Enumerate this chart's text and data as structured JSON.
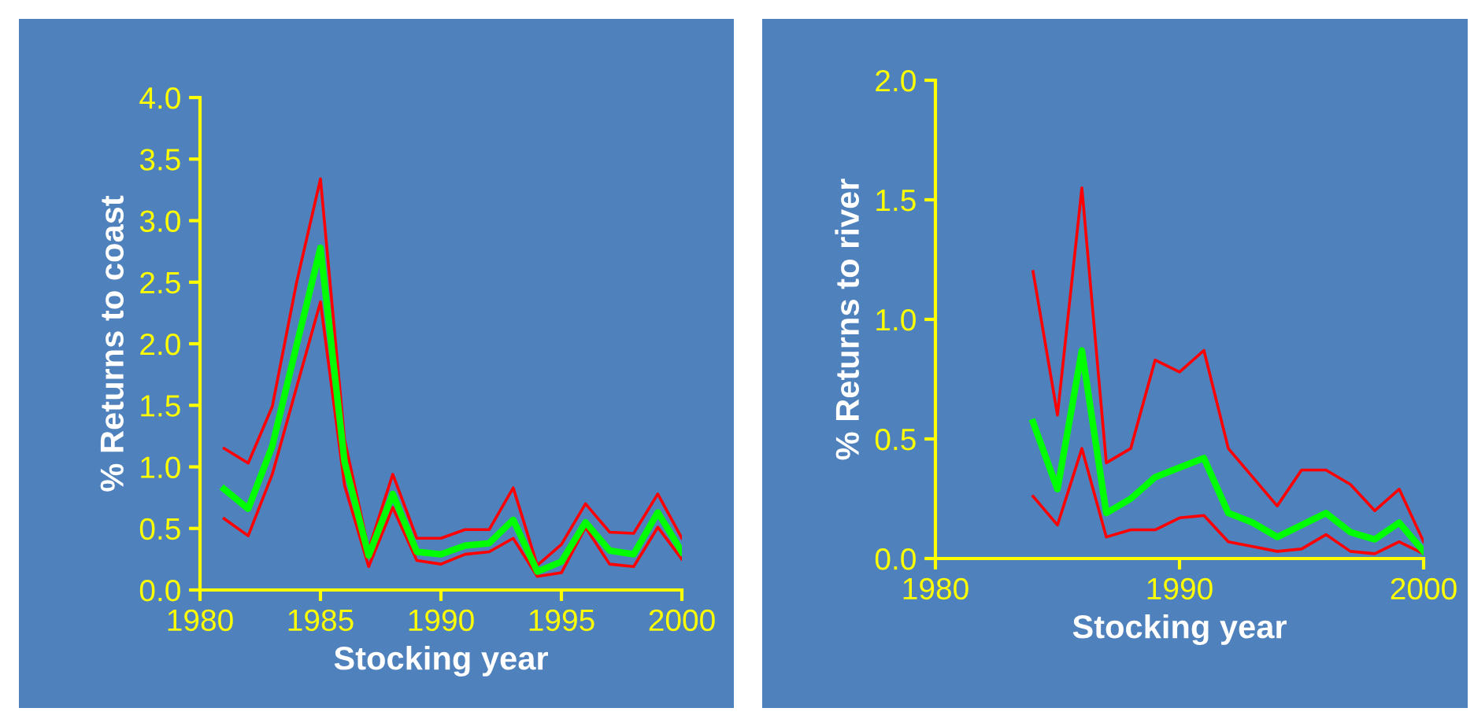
{
  "chart_data": [
    {
      "type": "line",
      "xlabel": "Stocking year",
      "ylabel": "% Returns to coast",
      "x": [
        1981,
        1982,
        1983,
        1984,
        1985,
        1986,
        1987,
        1988,
        1989,
        1990,
        1991,
        1992,
        1993,
        1994,
        1995,
        1996,
        1997,
        1998,
        1999,
        2000
      ],
      "series": [
        {
          "color": "#ff0000",
          "values": [
            1.15,
            1.03,
            1.49,
            2.49,
            3.34,
            1.22,
            0.33,
            0.94,
            0.42,
            0.42,
            0.49,
            0.49,
            0.83,
            0.2,
            0.37,
            0.7,
            0.47,
            0.46,
            0.78,
            0.42
          ]
        },
        {
          "color": "#ff0000",
          "values": [
            0.58,
            0.44,
            0.94,
            1.64,
            2.34,
            0.85,
            0.19,
            0.67,
            0.24,
            0.21,
            0.29,
            0.31,
            0.42,
            0.11,
            0.14,
            0.51,
            0.21,
            0.19,
            0.51,
            0.25
          ]
        },
        {
          "color": "#00ff00",
          "values": [
            0.82,
            0.66,
            1.17,
            1.98,
            2.78,
            1.04,
            0.28,
            0.78,
            0.31,
            0.29,
            0.36,
            0.38,
            0.57,
            0.15,
            0.23,
            0.55,
            0.32,
            0.29,
            0.63,
            0.31
          ]
        }
      ],
      "xlim": [
        1980,
        2000
      ],
      "xticks": [
        1980,
        1985,
        1990,
        1995,
        2000
      ],
      "ylim": [
        0,
        4
      ],
      "yticks": [
        {
          "value": 0,
          "label": "0.0"
        },
        {
          "value": 0.5,
          "label": "0.5"
        },
        {
          "value": 1,
          "label": "1.0"
        },
        {
          "value": 1.5,
          "label": "1.5"
        },
        {
          "value": 2,
          "label": "2.0"
        },
        {
          "value": 2.5,
          "label": "2.5"
        },
        {
          "value": 3,
          "label": "3.0"
        },
        {
          "value": 3.5,
          "label": "3.5"
        },
        {
          "value": 4,
          "label": "4.0"
        }
      ],
      "grid": false,
      "legend": false,
      "marker": "none",
      "line_style": "solid"
    },
    {
      "type": "line",
      "xlabel": "Stocking year",
      "ylabel": "% Returns to river",
      "x": [
        1984,
        1985,
        1986,
        1987,
        1988,
        1989,
        1990,
        1991,
        1992,
        1993,
        1994,
        1995,
        1996,
        1997,
        1998,
        1999,
        2000
      ],
      "series": [
        {
          "color": "#ff0000",
          "values": [
            1.2,
            0.6,
            1.55,
            0.4,
            0.46,
            0.83,
            0.78,
            0.87,
            0.46,
            0.34,
            0.22,
            0.37,
            0.37,
            0.31,
            0.2,
            0.29,
            0.07
          ]
        },
        {
          "color": "#ff0000",
          "values": [
            0.26,
            0.14,
            0.46,
            0.09,
            0.12,
            0.12,
            0.17,
            0.18,
            0.07,
            0.05,
            0.03,
            0.04,
            0.1,
            0.03,
            0.02,
            0.07,
            0.02
          ]
        },
        {
          "color": "#00ff00",
          "values": [
            0.57,
            0.29,
            0.87,
            0.19,
            0.25,
            0.34,
            0.38,
            0.42,
            0.19,
            0.15,
            0.09,
            0.14,
            0.19,
            0.11,
            0.08,
            0.15,
            0.03
          ]
        }
      ],
      "xlim": [
        1980,
        2000
      ],
      "xticks": [
        1980,
        1990,
        2000
      ],
      "ylim": [
        0,
        2
      ],
      "yticks": [
        {
          "value": 0,
          "label": "0.0"
        },
        {
          "value": 0.5,
          "label": "0.5"
        },
        {
          "value": 1,
          "label": "1.0"
        },
        {
          "value": 1.5,
          "label": "1.5"
        },
        {
          "value": 2,
          "label": "2.0"
        }
      ],
      "grid": false,
      "legend": false,
      "marker": "none",
      "line_style": "solid"
    }
  ]
}
